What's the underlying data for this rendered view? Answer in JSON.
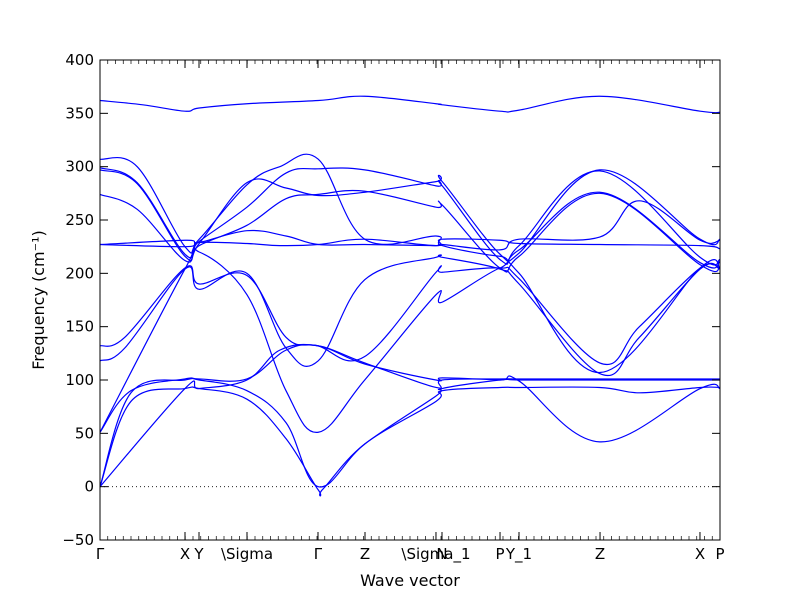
{
  "chart_data": {
    "type": "line",
    "xlabel": "Wave vector",
    "ylabel": "Frequency (cm⁻¹)",
    "x_tick_labels": [
      "Γ",
      "X",
      "Y",
      "\\Sigma",
      "Γ",
      "Z",
      "\\Sigma_1",
      "N",
      "P",
      "Y_1",
      "Z",
      "X",
      "P"
    ],
    "x_tick_positions": [
      0,
      0.1371,
      0.1597,
      0.2371,
      0.3516,
      0.4274,
      0.5419,
      0.5516,
      0.6452,
      0.6758,
      0.8065,
      0.9677,
      1.0
    ],
    "xlim": [
      0,
      1
    ],
    "ylim": [
      -50,
      400
    ],
    "y_ticks": [
      -50,
      0,
      50,
      100,
      150,
      200,
      250,
      300,
      350,
      400
    ],
    "line_color": "#0000ff",
    "zero_line": {
      "y": 0,
      "style": "dotted",
      "color": "#000000"
    },
    "series": [
      {
        "x": [
          0,
          0.069,
          0.137,
          0.16,
          0.237,
          0.352,
          0.427,
          0.542,
          0.552,
          0.645,
          0.676,
          0.806,
          0.968,
          1.0
        ],
        "values": [
          362,
          358,
          352,
          355,
          359,
          362,
          366,
          359,
          358,
          352,
          353,
          366,
          352,
          351
        ]
      },
      {
        "x": [
          0,
          0.06,
          0.137,
          0.16,
          0.237,
          0.29,
          0.352,
          0.427,
          0.542,
          0.552,
          0.645,
          0.676,
          0.806,
          0.968,
          1.0
        ],
        "values": [
          307,
          300,
          225,
          232,
          283,
          300,
          307,
          232,
          235,
          226,
          216,
          219,
          297,
          232,
          232
        ]
      },
      {
        "x": [
          0,
          0.06,
          0.137,
          0.16,
          0.237,
          0.3,
          0.352,
          0.427,
          0.542,
          0.552,
          0.645,
          0.676,
          0.806,
          0.968,
          1.0
        ],
        "values": [
          299,
          285,
          218,
          230,
          262,
          294,
          298,
          297,
          282,
          282,
          213,
          226,
          296,
          215,
          213
        ]
      },
      {
        "x": [
          0,
          0.06,
          0.137,
          0.16,
          0.237,
          0.3,
          0.352,
          0.427,
          0.542,
          0.552,
          0.645,
          0.676,
          0.806,
          0.968,
          1.0
        ],
        "values": [
          297,
          284,
          216,
          228,
          285,
          280,
          273,
          276,
          286,
          286,
          218,
          222,
          276,
          210,
          211
        ]
      },
      {
        "x": [
          0,
          0.06,
          0.137,
          0.16,
          0.237,
          0.3,
          0.352,
          0.427,
          0.542,
          0.552,
          0.645,
          0.676,
          0.806,
          0.968,
          1.0
        ],
        "values": [
          274,
          260,
          212,
          226,
          245,
          270,
          274,
          277,
          262,
          264,
          205,
          216,
          275,
          208,
          205
        ]
      },
      {
        "x": [
          0,
          0.137,
          0.16,
          0.237,
          0.3,
          0.352,
          0.427,
          0.542,
          0.552,
          0.645,
          0.676,
          0.806,
          0.87,
          0.968,
          1.0
        ],
        "values": [
          227,
          231,
          229,
          240,
          235,
          227,
          227,
          226,
          227,
          222,
          232,
          234,
          268,
          231,
          231
        ]
      },
      {
        "x": [
          0,
          0.137,
          0.16,
          0.237,
          0.29,
          0.352,
          0.427,
          0.542,
          0.552,
          0.645,
          0.676,
          0.806,
          0.968,
          1.0
        ],
        "values": [
          227,
          225,
          229,
          228,
          226,
          227,
          232,
          226,
          232,
          231,
          228,
          227,
          226,
          223
        ]
      },
      {
        "x": [
          0,
          0.04,
          0.137,
          0.16,
          0.237,
          0.3,
          0.352,
          0.427,
          0.542,
          0.552,
          0.645,
          0.676,
          0.806,
          0.87,
          0.968,
          1.0
        ],
        "values": [
          132,
          140,
          205,
          190,
          198,
          140,
          132,
          122,
          201,
          201,
          205,
          195,
          116,
          150,
          205,
          205
        ]
      },
      {
        "x": [
          0,
          0.04,
          0.137,
          0.16,
          0.237,
          0.3,
          0.352,
          0.427,
          0.542,
          0.552,
          0.645,
          0.676,
          0.806,
          0.87,
          0.968,
          1.0
        ],
        "values": [
          118,
          130,
          204,
          185,
          200,
          130,
          118,
          194,
          215,
          215,
          204,
          190,
          106,
          140,
          204,
          204
        ]
      },
      {
        "x": [
          0,
          0.137,
          0.16,
          0.237,
          0.3,
          0.352,
          0.427,
          0.542,
          0.552,
          0.645,
          0.676,
          0.806,
          0.968,
          1.0
        ],
        "values": [
          51,
          204,
          220,
          180,
          90,
          51,
          100,
          180,
          173,
          205,
          200,
          107,
          205,
          205
        ]
      },
      {
        "x": [
          0,
          0.05,
          0.137,
          0.16,
          0.237,
          0.3,
          0.352,
          0.427,
          0.542,
          0.552,
          0.645,
          0.676,
          0.806,
          0.968,
          1.0
        ],
        "values": [
          51,
          90,
          101,
          101,
          101,
          128,
          132,
          116,
          93,
          100,
          101,
          101,
          101,
          101,
          101
        ]
      },
      {
        "x": [
          0,
          0.05,
          0.137,
          0.16,
          0.237,
          0.3,
          0.352,
          0.427,
          0.542,
          0.552,
          0.645,
          0.676,
          0.806,
          0.968,
          1.0
        ],
        "values": [
          0,
          88,
          100,
          100,
          90,
          60,
          0,
          40,
          85,
          92,
          100,
          100,
          100,
          100,
          100
        ]
      },
      {
        "x": [
          0,
          0.05,
          0.137,
          0.16,
          0.237,
          0.3,
          0.352,
          0.36,
          0.427,
          0.542,
          0.552,
          0.645,
          0.676,
          0.806,
          0.87,
          0.968,
          1.0
        ],
        "values": [
          0,
          80,
          92,
          92,
          82,
          45,
          -3,
          -2,
          40,
          80,
          90,
          93,
          93,
          93,
          88,
          93,
          93
        ]
      },
      {
        "x": [
          0,
          0.137,
          0.16,
          0.237,
          0.29,
          0.352,
          0.427,
          0.542,
          0.552,
          0.645,
          0.676,
          0.806,
          0.968,
          1.0
        ],
        "values": [
          0,
          92,
          92,
          100,
          128,
          132,
          115,
          100,
          102,
          100,
          99,
          42,
          92,
          92
        ]
      }
    ]
  }
}
